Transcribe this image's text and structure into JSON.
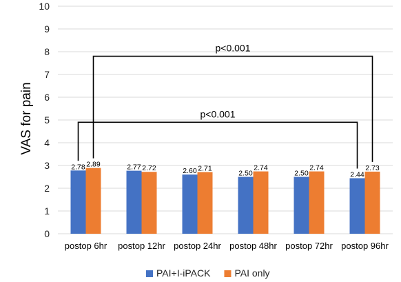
{
  "chart_data": {
    "type": "bar",
    "ylabel": "VAS for pain",
    "ylim": [
      0,
      10
    ],
    "yticks": [
      0,
      1,
      2,
      3,
      4,
      5,
      6,
      7,
      8,
      9,
      10
    ],
    "grid": true,
    "legend_position": "bottom",
    "categories": [
      "postop 6hr",
      "postop 12hr",
      "postop 24hr",
      "postop 48hr",
      "postop 72hr",
      "postop 96hr"
    ],
    "series": [
      {
        "name": "PAI+I-iPACK",
        "color": "#4472c4",
        "values": [
          2.78,
          2.77,
          2.6,
          2.5,
          2.5,
          2.44
        ],
        "labels": [
          "2.78",
          "2.77",
          "2.60",
          "2.50",
          "2.50",
          "2.44"
        ]
      },
      {
        "name": "PAI only",
        "color": "#ed7d31",
        "values": [
          2.89,
          2.72,
          2.71,
          2.74,
          2.74,
          2.73
        ],
        "labels": [
          "2.89",
          "2.72",
          "2.71",
          "2.74",
          "2.74",
          "2.73"
        ]
      }
    ],
    "annotations": [
      {
        "text": "p<0.001",
        "from": {
          "category": 0,
          "series": 1
        },
        "to": {
          "category": 5,
          "series": 1
        },
        "y": 7.8
      },
      {
        "text": "p<0.001",
        "from": {
          "category": 0,
          "series": 0
        },
        "to": {
          "category": 5,
          "series": 0
        },
        "y": 4.9
      }
    ]
  }
}
